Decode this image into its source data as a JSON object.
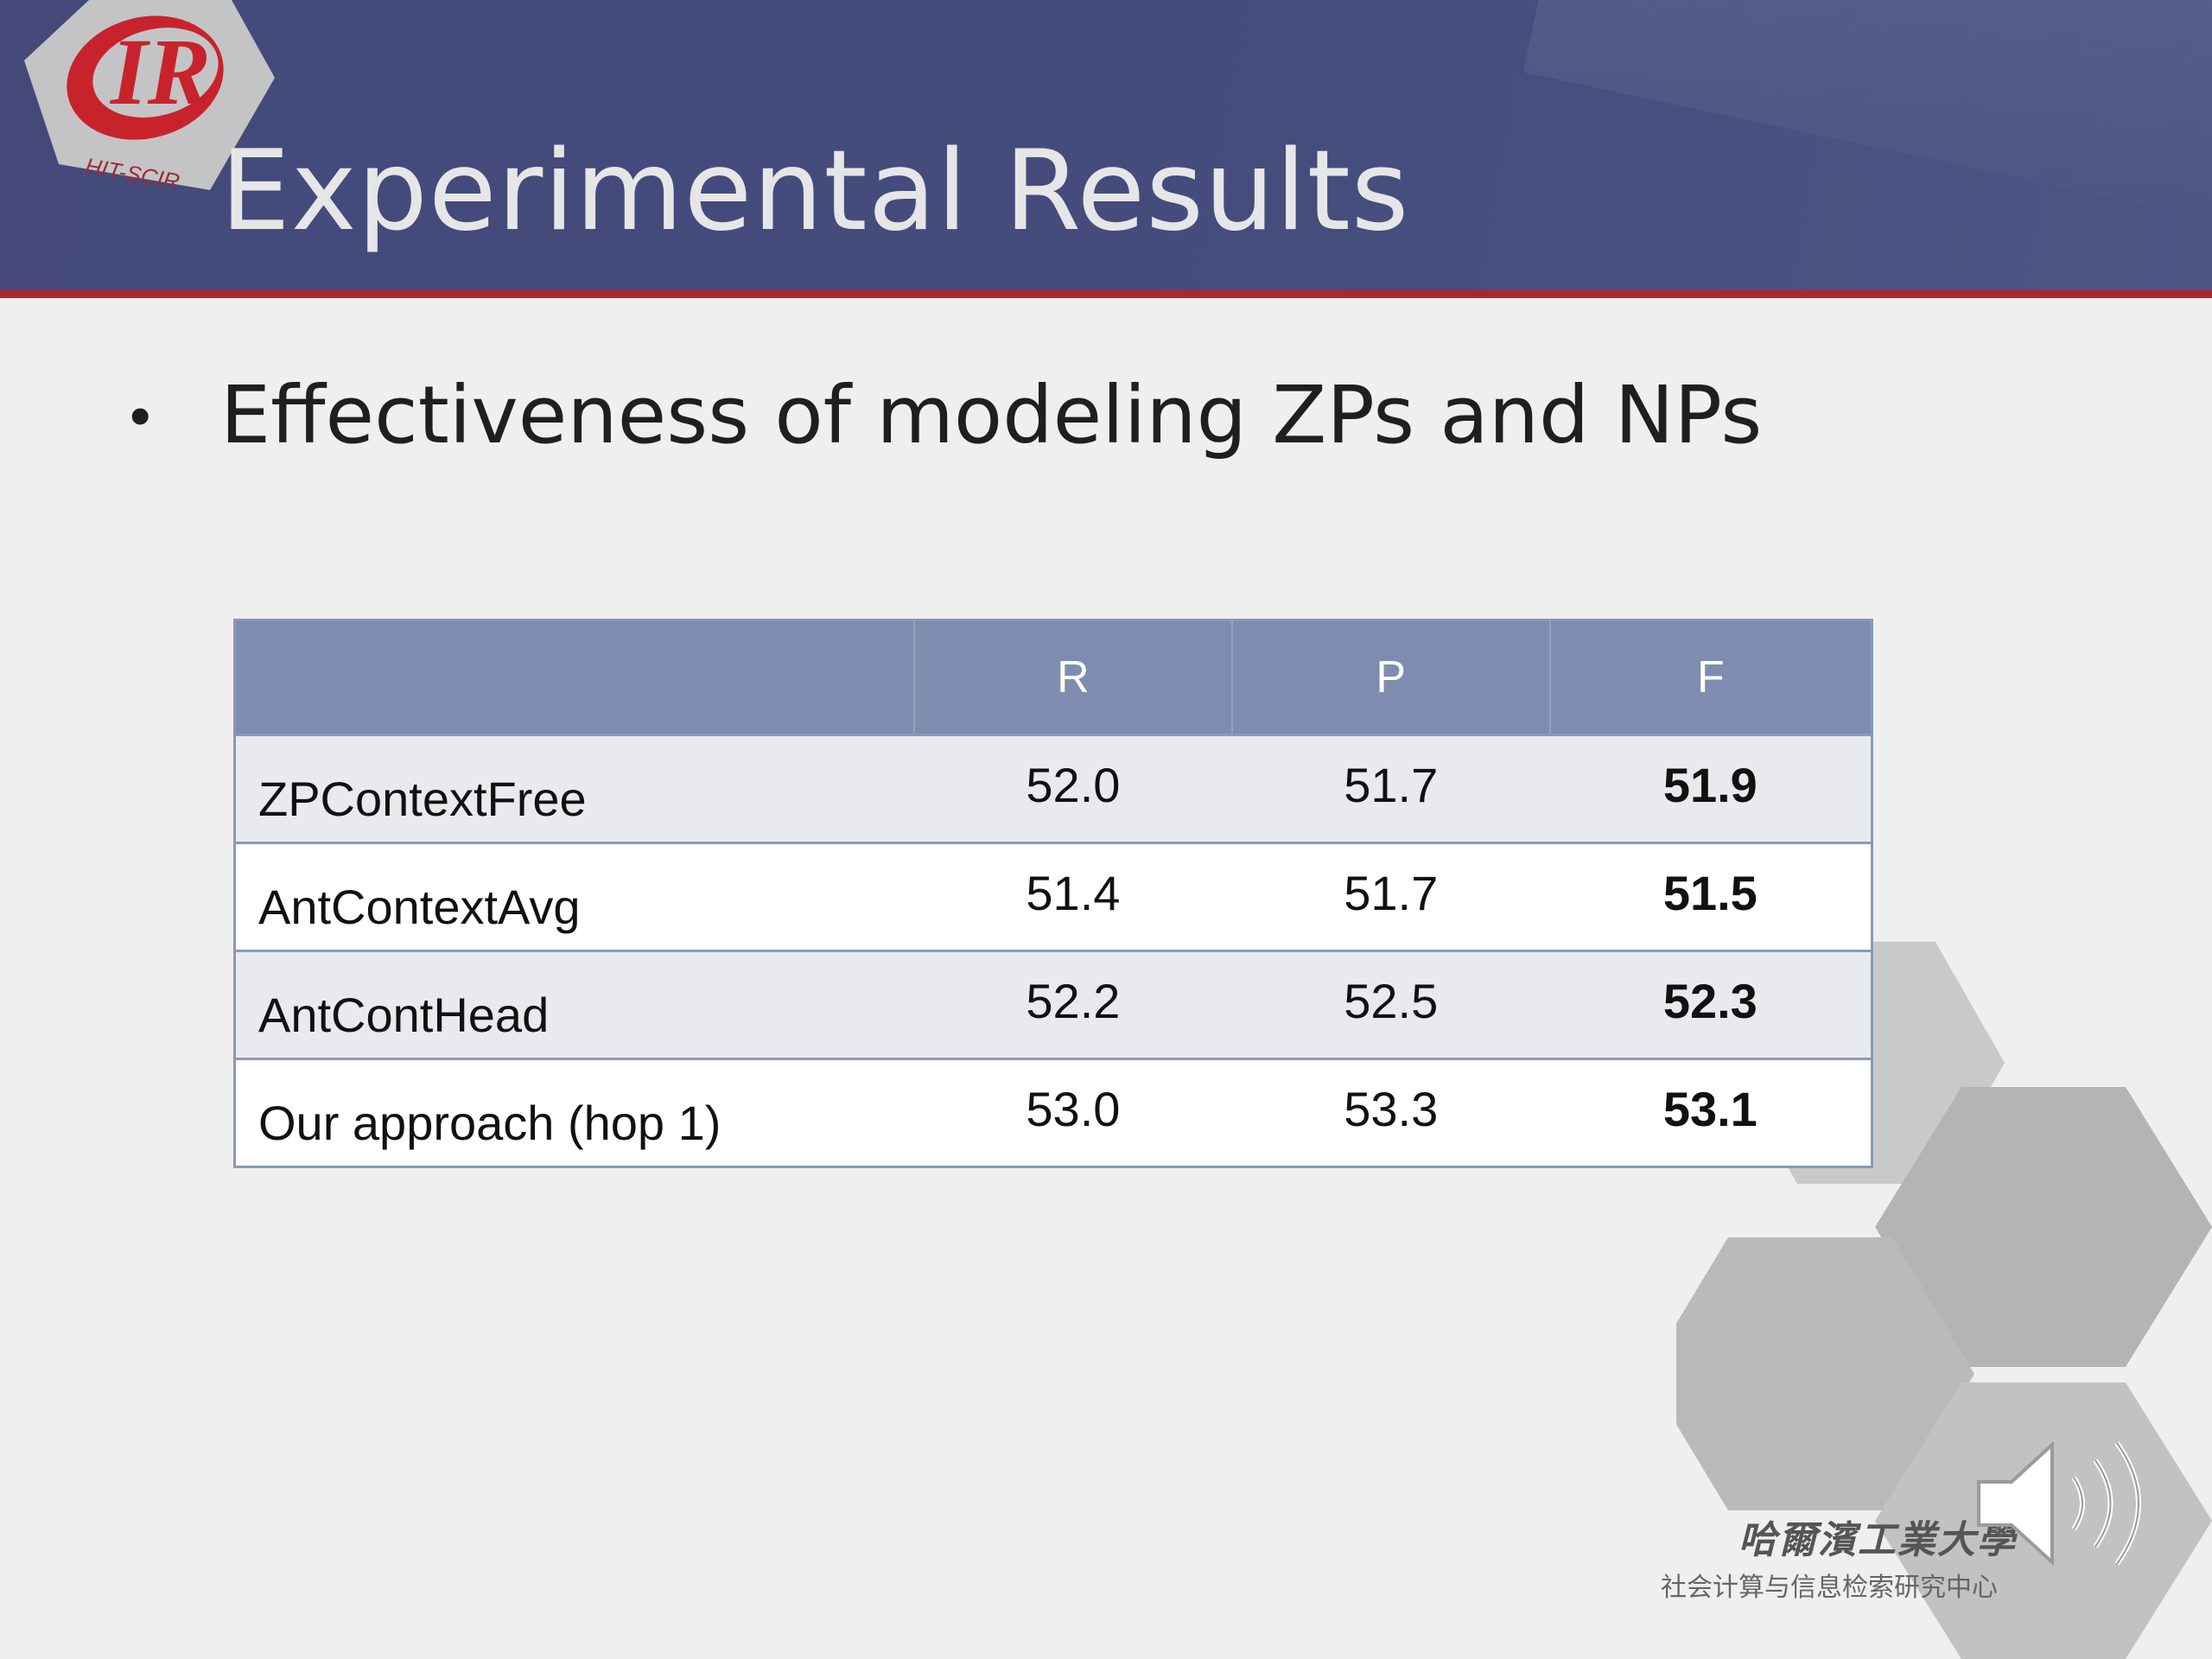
{
  "logo": {
    "mark": "IR",
    "text": "HIT-SCIR"
  },
  "title": "Experimental Results",
  "bullet": "Effectiveness of modeling ZPs and NPs",
  "table": {
    "headers": [
      "",
      "R",
      "P",
      "F"
    ],
    "rows": [
      {
        "label": "ZPContextFree",
        "R": "52.0",
        "P": "51.7",
        "F": "51.9"
      },
      {
        "label": "AntContextAvg",
        "R": "51.4",
        "P": "51.7",
        "F": "51.5"
      },
      {
        "label": "AntContHead",
        "R": "52.2",
        "P": "52.5",
        "F": "52.3"
      },
      {
        "label": "Our approach (hop 1)",
        "R": "53.0",
        "P": "53.3",
        "F": "53.1"
      }
    ]
  },
  "footer": {
    "institution_cn": "哈爾濱工業大學",
    "center_cn": "社会计算与信息检索研究中心"
  },
  "icons": [
    "speaker-icon"
  ],
  "colors": {
    "header": "#454d7d",
    "accent_rule": "#b0242d",
    "table_header": "#7e8daf"
  }
}
